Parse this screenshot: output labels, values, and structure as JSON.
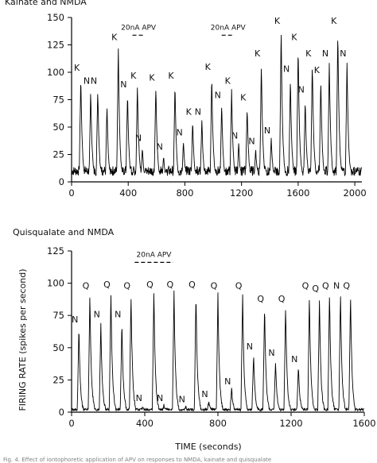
{
  "figure": {
    "title_top": "Kainate and NMDA",
    "title_bottom": "Quisqualate and NMDA",
    "ylabel_bottom": "FIRING RATE (spikes per second)",
    "xlabel_bottom": "TIME (seconds)",
    "caption_fragment": "Fig. 4. Effect of iontophoretic application of APV on responses to NMDA, kainate and quisqualate"
  },
  "chart_data": [
    {
      "type": "line",
      "title": "Kainate and NMDA",
      "xlabel": "",
      "ylabel": "",
      "xlim": [
        0,
        2050
      ],
      "ylim": [
        0,
        150
      ],
      "xticks": [
        0,
        400,
        800,
        1200,
        1600,
        2000
      ],
      "yticks": [
        0,
        25,
        50,
        75,
        100,
        125,
        150
      ],
      "grid": false,
      "baseline": 10,
      "peaks": [
        {
          "x": 65,
          "y": 97,
          "label": "K"
        },
        {
          "x": 135,
          "y": 85,
          "label": "N"
        },
        {
          "x": 185,
          "y": 85,
          "label": "N"
        },
        {
          "x": 250,
          "y": 70,
          "label": ""
        },
        {
          "x": 330,
          "y": 125,
          "label": "K"
        },
        {
          "x": 395,
          "y": 82,
          "label": "N"
        },
        {
          "x": 465,
          "y": 90,
          "label": "K"
        },
        {
          "x": 500,
          "y": 33,
          "label": "N"
        },
        {
          "x": 595,
          "y": 88,
          "label": "K"
        },
        {
          "x": 650,
          "y": 25,
          "label": "N"
        },
        {
          "x": 730,
          "y": 90,
          "label": "K"
        },
        {
          "x": 790,
          "y": 38,
          "label": "N"
        },
        {
          "x": 855,
          "y": 57,
          "label": "K"
        },
        {
          "x": 920,
          "y": 57,
          "label": "N"
        },
        {
          "x": 990,
          "y": 98,
          "label": "K"
        },
        {
          "x": 1060,
          "y": 72,
          "label": "N"
        },
        {
          "x": 1130,
          "y": 85,
          "label": "K"
        },
        {
          "x": 1180,
          "y": 35,
          "label": "N"
        },
        {
          "x": 1240,
          "y": 70,
          "label": "K"
        },
        {
          "x": 1300,
          "y": 30,
          "label": "N"
        },
        {
          "x": 1340,
          "y": 110,
          "label": "K"
        },
        {
          "x": 1410,
          "y": 40,
          "label": "N"
        },
        {
          "x": 1480,
          "y": 140,
          "label": "K"
        },
        {
          "x": 1545,
          "y": 96,
          "label": "N"
        },
        {
          "x": 1600,
          "y": 125,
          "label": "K"
        },
        {
          "x": 1650,
          "y": 77,
          "label": "N"
        },
        {
          "x": 1700,
          "y": 110,
          "label": "K"
        },
        {
          "x": 1760,
          "y": 95,
          "label": "K"
        },
        {
          "x": 1820,
          "y": 110,
          "label": "N"
        },
        {
          "x": 1880,
          "y": 140,
          "label": "K"
        },
        {
          "x": 1945,
          "y": 110,
          "label": "N"
        }
      ],
      "annotations": [
        {
          "text": "20nA APV",
          "x_start": 430,
          "x_end": 515,
          "y": 136
        },
        {
          "text": "20nA APV",
          "x_start": 1060,
          "x_end": 1150,
          "y": 136
        }
      ]
    },
    {
      "type": "line",
      "title": "Quisqualate and NMDA",
      "xlabel": "TIME (seconds)",
      "ylabel": "FIRING RATE (spikes per second)",
      "xlim": [
        0,
        1600
      ],
      "ylim": [
        0,
        125
      ],
      "xticks": [
        0,
        400,
        800,
        1200,
        1600
      ],
      "yticks": [
        0,
        25,
        50,
        75,
        100,
        125
      ],
      "grid": false,
      "baseline": 2,
      "peaks": [
        {
          "x": 40,
          "y": 66,
          "label": "N"
        },
        {
          "x": 100,
          "y": 92,
          "label": "Q"
        },
        {
          "x": 160,
          "y": 70,
          "label": "N"
        },
        {
          "x": 215,
          "y": 93,
          "label": "Q"
        },
        {
          "x": 275,
          "y": 70,
          "label": "N"
        },
        {
          "x": 325,
          "y": 92,
          "label": "Q"
        },
        {
          "x": 390,
          "y": 5,
          "label": "N"
        },
        {
          "x": 450,
          "y": 93,
          "label": "Q"
        },
        {
          "x": 505,
          "y": 5,
          "label": "N"
        },
        {
          "x": 560,
          "y": 93,
          "label": "Q"
        },
        {
          "x": 625,
          "y": 4,
          "label": "N"
        },
        {
          "x": 680,
          "y": 93,
          "label": "Q"
        },
        {
          "x": 750,
          "y": 8,
          "label": "N"
        },
        {
          "x": 800,
          "y": 92,
          "label": "Q"
        },
        {
          "x": 875,
          "y": 18,
          "label": "N"
        },
        {
          "x": 935,
          "y": 92,
          "label": "Q"
        },
        {
          "x": 995,
          "y": 45,
          "label": "N"
        },
        {
          "x": 1055,
          "y": 82,
          "label": "Q"
        },
        {
          "x": 1115,
          "y": 40,
          "label": "N"
        },
        {
          "x": 1170,
          "y": 82,
          "label": "Q"
        },
        {
          "x": 1240,
          "y": 35,
          "label": "N"
        },
        {
          "x": 1300,
          "y": 92,
          "label": "Q"
        },
        {
          "x": 1355,
          "y": 90,
          "label": "Q"
        },
        {
          "x": 1410,
          "y": 92,
          "label": "Q"
        },
        {
          "x": 1470,
          "y": 92,
          "label": "N"
        },
        {
          "x": 1525,
          "y": 92,
          "label": "Q"
        }
      ],
      "annotations": [
        {
          "text": "20nA APV",
          "x_start": 345,
          "x_end": 555,
          "y": 118
        }
      ]
    }
  ]
}
